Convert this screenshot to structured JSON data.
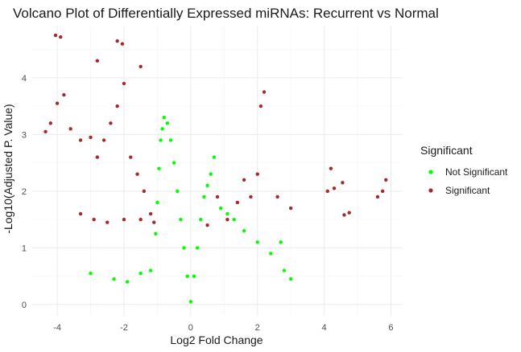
{
  "chart_data": {
    "type": "scatter",
    "title": "Volcano Plot of Differentially Expressed miRNAs: Recurrent vs Normal",
    "xlabel": "Log2 Fold Change",
    "ylabel": "-Log10(Adjusted P. Value)",
    "xlim": [
      -4.75,
      6.35
    ],
    "ylim": [
      -0.2,
      4.92
    ],
    "x_ticks": [
      -4,
      -2,
      0,
      2,
      4,
      6
    ],
    "y_ticks": [
      0,
      1,
      2,
      3,
      4
    ],
    "x_tick_labels": [
      "-4",
      "-2",
      "0",
      "2",
      "4",
      "6"
    ],
    "y_tick_labels": [
      "0",
      "1",
      "2",
      "3",
      "4"
    ],
    "grid": true,
    "legend": {
      "title": "Significant",
      "position": "right",
      "entries": [
        "Not Significant",
        "Significant"
      ]
    },
    "colors": {
      "Not Significant": "#00ff00",
      "Significant": "#a52a2a"
    },
    "series": [
      {
        "name": "Not Significant",
        "points": [
          [
            -3.0,
            0.55
          ],
          [
            -2.3,
            0.45
          ],
          [
            -1.9,
            0.4
          ],
          [
            -1.5,
            0.55
          ],
          [
            -1.2,
            0.6
          ],
          [
            -1.05,
            1.25
          ],
          [
            -1.0,
            1.8
          ],
          [
            -0.95,
            2.4
          ],
          [
            -0.9,
            2.9
          ],
          [
            -0.85,
            3.1
          ],
          [
            -0.8,
            3.3
          ],
          [
            -0.7,
            3.2
          ],
          [
            -0.6,
            2.9
          ],
          [
            -0.5,
            2.5
          ],
          [
            -0.4,
            2.0
          ],
          [
            -0.3,
            1.5
          ],
          [
            -0.2,
            1.0
          ],
          [
            -0.1,
            0.5
          ],
          [
            0.0,
            0.05
          ],
          [
            0.1,
            0.5
          ],
          [
            0.2,
            1.0
          ],
          [
            0.3,
            1.5
          ],
          [
            0.4,
            1.9
          ],
          [
            0.5,
            2.1
          ],
          [
            0.6,
            2.3
          ],
          [
            0.7,
            2.6
          ],
          [
            0.9,
            1.7
          ],
          [
            1.1,
            1.6
          ],
          [
            1.3,
            1.5
          ],
          [
            1.6,
            1.3
          ],
          [
            2.0,
            1.1
          ],
          [
            2.4,
            0.9
          ],
          [
            2.8,
            0.6
          ],
          [
            3.0,
            0.45
          ],
          [
            2.7,
            1.1
          ]
        ]
      },
      {
        "name": "Significant",
        "points": [
          [
            -4.05,
            4.75
          ],
          [
            -3.9,
            4.72
          ],
          [
            -4.35,
            3.05
          ],
          [
            -4.2,
            3.2
          ],
          [
            -4.0,
            3.55
          ],
          [
            -3.8,
            3.7
          ],
          [
            -3.6,
            3.1
          ],
          [
            -3.3,
            2.9
          ],
          [
            -3.0,
            2.95
          ],
          [
            -2.8,
            2.6
          ],
          [
            -2.6,
            2.9
          ],
          [
            -2.4,
            3.2
          ],
          [
            -2.2,
            3.5
          ],
          [
            -2.0,
            3.9
          ],
          [
            -1.8,
            2.6
          ],
          [
            -1.6,
            2.3
          ],
          [
            -1.4,
            2.0
          ],
          [
            -1.2,
            1.6
          ],
          [
            -2.2,
            4.65
          ],
          [
            -2.05,
            4.6
          ],
          [
            -1.5,
            4.2
          ],
          [
            -2.8,
            4.3
          ],
          [
            -3.3,
            1.6
          ],
          [
            -2.9,
            1.5
          ],
          [
            -2.5,
            1.45
          ],
          [
            -2.0,
            1.5
          ],
          [
            -1.5,
            1.5
          ],
          [
            -1.1,
            1.45
          ],
          [
            0.5,
            1.4
          ],
          [
            0.8,
            1.9
          ],
          [
            1.1,
            1.5
          ],
          [
            1.4,
            1.8
          ],
          [
            1.6,
            2.2
          ],
          [
            1.8,
            1.9
          ],
          [
            2.0,
            2.3
          ],
          [
            2.1,
            3.5
          ],
          [
            2.2,
            3.75
          ],
          [
            2.6,
            1.9
          ],
          [
            3.0,
            1.7
          ],
          [
            4.1,
            2.0
          ],
          [
            4.3,
            2.05
          ],
          [
            4.55,
            2.15
          ],
          [
            4.6,
            1.58
          ],
          [
            4.75,
            1.62
          ],
          [
            5.6,
            1.9
          ],
          [
            5.75,
            2.0
          ],
          [
            5.85,
            2.2
          ],
          [
            4.2,
            2.4
          ]
        ]
      }
    ]
  }
}
